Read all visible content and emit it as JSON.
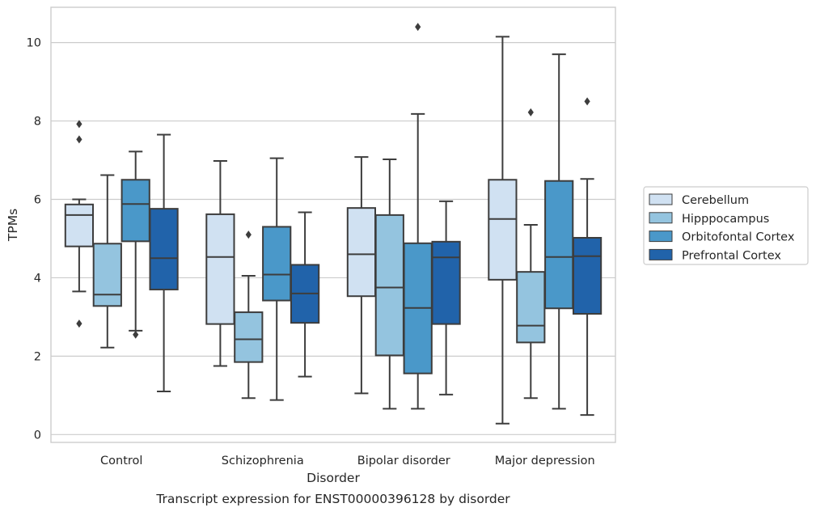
{
  "chart_data": {
    "type": "box",
    "title": "",
    "caption": "Transcript expression for ENST00000396128 by disorder",
    "xlabel": "Disorder",
    "ylabel": "TPMs",
    "ylim": [
      -0.2,
      10.9
    ],
    "yticks": [
      0,
      2,
      4,
      6,
      8,
      10
    ],
    "grid": "horizontal",
    "legend_position": "right",
    "categories": [
      "Control",
      "Schizophrenia",
      "Bipolar disorder",
      "Major depression"
    ],
    "series": [
      {
        "name": "Cerebellum",
        "color": "#d0e1f2",
        "boxes": [
          {
            "whisker_low": 3.65,
            "q1": 4.8,
            "median": 5.6,
            "q3": 5.87,
            "whisker_high": 6.0,
            "outliers": [
              7.92,
              7.53,
              2.83
            ]
          },
          {
            "whisker_low": 1.75,
            "q1": 2.82,
            "median": 4.53,
            "q3": 5.62,
            "whisker_high": 6.98,
            "outliers": []
          },
          {
            "whisker_low": 1.05,
            "q1": 3.53,
            "median": 4.6,
            "q3": 5.78,
            "whisker_high": 7.08,
            "outliers": []
          },
          {
            "whisker_low": 0.28,
            "q1": 3.95,
            "median": 5.5,
            "q3": 6.5,
            "whisker_high": 10.15,
            "outliers": []
          }
        ]
      },
      {
        "name": "Hipppocampus",
        "color": "#94c4df",
        "boxes": [
          {
            "whisker_low": 2.22,
            "q1": 3.28,
            "median": 3.57,
            "q3": 4.87,
            "whisker_high": 6.62,
            "outliers": []
          },
          {
            "whisker_low": 0.93,
            "q1": 1.85,
            "median": 2.43,
            "q3": 3.12,
            "whisker_high": 4.05,
            "outliers": [
              5.1
            ]
          },
          {
            "whisker_low": 0.66,
            "q1": 2.02,
            "median": 3.75,
            "q3": 5.6,
            "whisker_high": 7.02,
            "outliers": []
          },
          {
            "whisker_low": 0.93,
            "q1": 2.35,
            "median": 2.78,
            "q3": 4.15,
            "whisker_high": 5.35,
            "outliers": [
              8.22
            ]
          }
        ]
      },
      {
        "name": "Orbitofontal Cortex",
        "color": "#4a98c9",
        "boxes": [
          {
            "whisker_low": 2.65,
            "q1": 4.93,
            "median": 5.88,
            "q3": 6.5,
            "whisker_high": 7.22,
            "outliers": [
              2.55
            ]
          },
          {
            "whisker_low": 0.88,
            "q1": 3.42,
            "median": 4.08,
            "q3": 5.3,
            "whisker_high": 7.05,
            "outliers": []
          },
          {
            "whisker_low": 0.66,
            "q1": 1.56,
            "median": 3.23,
            "q3": 4.88,
            "whisker_high": 8.18,
            "outliers": [
              10.4
            ]
          },
          {
            "whisker_low": 0.66,
            "q1": 3.22,
            "median": 4.53,
            "q3": 6.47,
            "whisker_high": 9.7,
            "outliers": []
          }
        ]
      },
      {
        "name": "Prefrontal Cortex",
        "color": "#2163aa",
        "boxes": [
          {
            "whisker_low": 1.1,
            "q1": 3.7,
            "median": 4.5,
            "q3": 5.76,
            "whisker_high": 7.65,
            "outliers": []
          },
          {
            "whisker_low": 1.48,
            "q1": 2.85,
            "median": 3.6,
            "q3": 4.33,
            "whisker_high": 5.67,
            "outliers": []
          },
          {
            "whisker_low": 1.02,
            "q1": 2.82,
            "median": 4.52,
            "q3": 4.92,
            "whisker_high": 5.95,
            "outliers": []
          },
          {
            "whisker_low": 0.5,
            "q1": 3.08,
            "median": 4.55,
            "q3": 5.02,
            "whisker_high": 6.52,
            "outliers": [
              8.5
            ]
          }
        ]
      }
    ]
  }
}
